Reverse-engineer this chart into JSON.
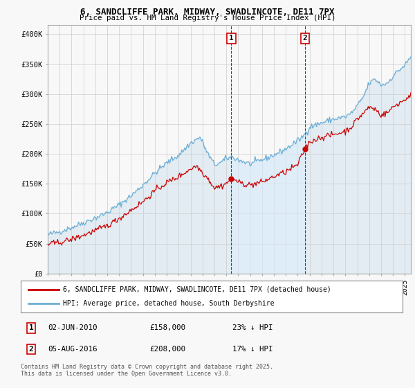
{
  "title_line1": "6, SANDCLIFFE PARK, MIDWAY, SWADLINCOTE, DE11 7PX",
  "title_line2": "Price paid vs. HM Land Registry's House Price Index (HPI)",
  "ylabel_ticks": [
    "£0",
    "£50K",
    "£100K",
    "£150K",
    "£200K",
    "£250K",
    "£300K",
    "£350K",
    "£400K"
  ],
  "ytick_values": [
    0,
    50000,
    100000,
    150000,
    200000,
    250000,
    300000,
    350000,
    400000
  ],
  "ylim": [
    0,
    415000
  ],
  "xlim_start": 1995.0,
  "xlim_end": 2025.5,
  "sale1_date": "02-JUN-2010",
  "sale1_price": 158000,
  "sale1_pct": "23% ↓ HPI",
  "sale1_x": 2010.42,
  "sale2_date": "05-AUG-2016",
  "sale2_price": 208000,
  "sale2_pct": "17% ↓ HPI",
  "sale2_x": 2016.6,
  "legend_line1": "6, SANDCLIFFE PARK, MIDWAY, SWADLINCOTE, DE11 7PX (detached house)",
  "legend_line2": "HPI: Average price, detached house, South Derbyshire",
  "footnote": "Contains HM Land Registry data © Crown copyright and database right 2025.\nThis data is licensed under the Open Government Licence v3.0.",
  "hpi_color": "#6baed6",
  "price_color": "#cc0000",
  "hpi_fill_color": "#ddeeff",
  "highlight_fill_color": "#ddeeff",
  "background_color": "#f8f8f8",
  "grid_color": "#cccccc"
}
